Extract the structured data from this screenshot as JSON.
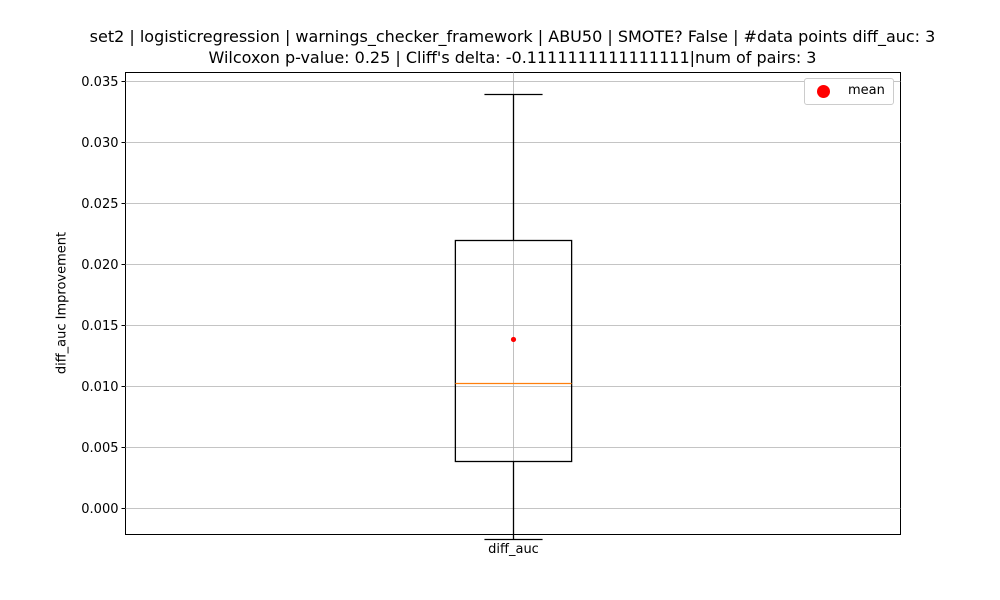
{
  "chart_data": {
    "type": "box",
    "title_line1": "set2 | logisticregression | warnings_checker_framework | ABU50 | SMOTE? False | #data points diff_auc: 3",
    "title_line2": "Wilcoxon p-value: 0.25 | Cliff's delta: -0.1111111111111111|num of pairs: 3",
    "ylabel": "diff_auc Improvement",
    "categories": [
      "diff_auc"
    ],
    "yticks": [
      "0.000",
      "0.005",
      "0.010",
      "0.015",
      "0.020",
      "0.025",
      "0.030",
      "0.035"
    ],
    "ylim": [
      -0.0022,
      0.0357
    ],
    "grid": true,
    "legend": {
      "label": "mean",
      "position": "top-right"
    },
    "boxes": [
      {
        "category": "diff_auc",
        "whisker_low": -0.0026,
        "q1": 0.0038,
        "median": 0.0102,
        "q3": 0.022,
        "whisker_high": 0.0339,
        "mean": 0.0138
      }
    ],
    "colors": {
      "median": "#ff7f0e",
      "mean": "#ff0000",
      "grid": "#b0b0b0",
      "box": "#000000"
    }
  }
}
